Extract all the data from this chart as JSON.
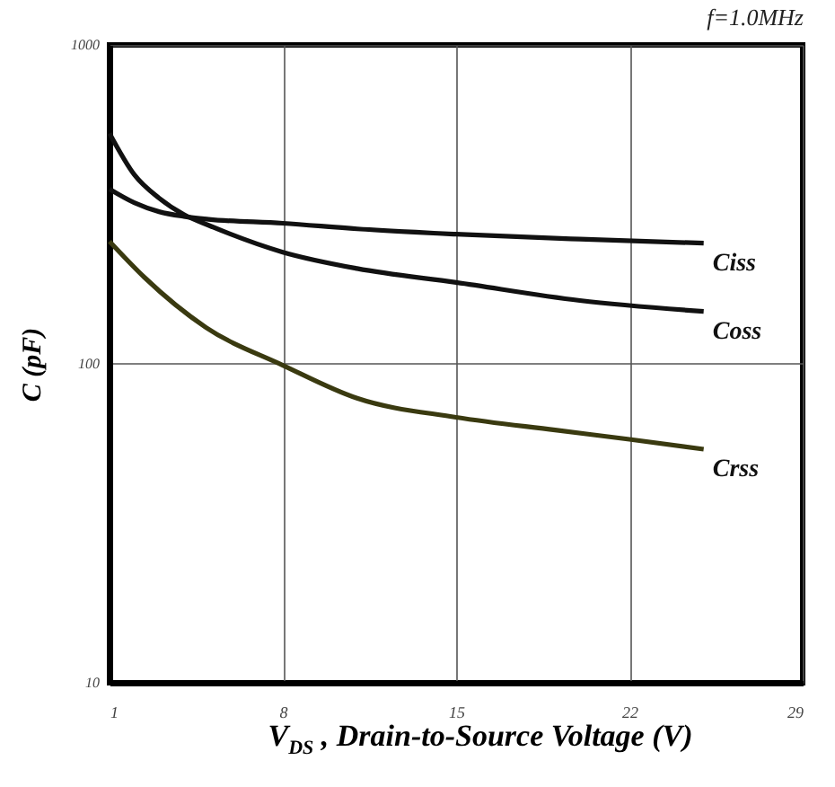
{
  "chart_data": {
    "type": "line",
    "xlabel": "V$_{DS}$ , Drain-to-Source Voltage (V)",
    "ylabel": "C (pF)",
    "annotations": [
      "f=1.0MHz"
    ],
    "xlim": [
      1,
      29
    ],
    "xticks": [
      1,
      8,
      15,
      22,
      29
    ],
    "ylim": [
      10,
      1000
    ],
    "yticks": [
      10,
      100,
      {
        "value": 1000,
        "label": "1000"
      }
    ],
    "log": "y",
    "grid": true,
    "marker": "none",
    "line_style": "solid",
    "series": [
      {
        "name": "Ciss",
        "color": "#111111",
        "x": [
          1,
          2,
          3,
          4,
          5,
          8,
          11,
          15,
          20,
          25
        ],
        "values": [
          353,
          320,
          300,
          290,
          284,
          276,
          265,
          255,
          246,
          239
        ]
      },
      {
        "name": "Coss",
        "color": "#111111",
        "x": [
          1,
          2,
          3,
          4,
          5,
          8,
          11,
          15,
          20,
          25
        ],
        "values": [
          528,
          392,
          331,
          294,
          272,
          224,
          199,
          180,
          158,
          146
        ]
      },
      {
        "name": "Crss",
        "color": "#3a3a10",
        "x": [
          1,
          2.4,
          4.9,
          8,
          11,
          15,
          19,
          22,
          25
        ],
        "values": [
          242,
          187,
          130,
          99,
          78,
          68,
          62,
          58,
          54
        ]
      }
    ]
  }
}
